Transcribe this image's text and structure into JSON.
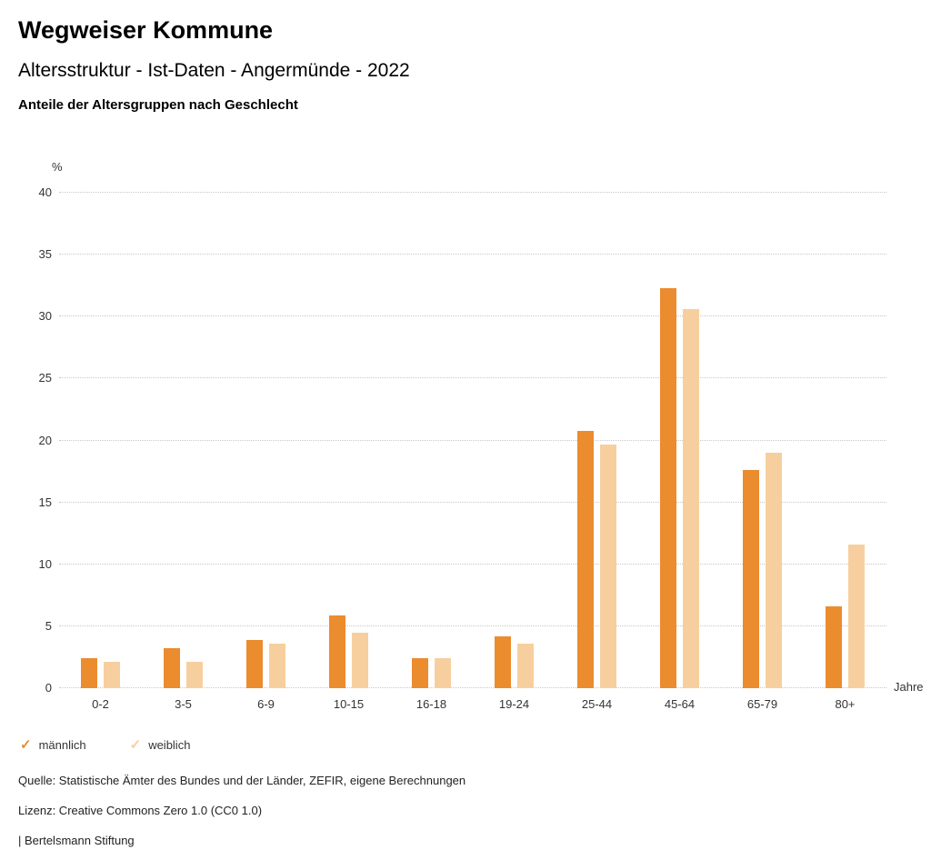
{
  "header": {
    "title": "Wegweiser Kommune",
    "subtitle": "Altersstruktur - Ist-Daten - Angermünde - 2022",
    "caption": "Anteile der Altersgruppen nach Geschlecht"
  },
  "chart_data": {
    "type": "bar",
    "title": "Anteile der Altersgruppen nach Geschlecht",
    "categories": [
      "0-2",
      "3-5",
      "6-9",
      "10-15",
      "16-18",
      "19-24",
      "25-44",
      "45-64",
      "65-79",
      "80+"
    ],
    "series": [
      {
        "name": "männlich",
        "color": "#EB8C2F",
        "values": [
          2.4,
          3.2,
          3.9,
          5.9,
          2.4,
          4.2,
          20.8,
          32.3,
          17.6,
          6.6
        ]
      },
      {
        "name": "weiblich",
        "color": "#F7CF9E",
        "values": [
          2.1,
          2.1,
          3.6,
          4.5,
          2.4,
          3.6,
          19.7,
          30.6,
          19.0,
          11.6
        ]
      }
    ],
    "ylabel": "%",
    "xlabel": "Jahre",
    "ylim": [
      0,
      40
    ],
    "yticks": [
      0,
      5,
      10,
      15,
      20,
      25,
      30,
      35,
      40
    ],
    "grid": true,
    "legend_position": "bottom-left"
  },
  "legend": {
    "items": [
      {
        "label": "männlich",
        "color": "#EB8C2F",
        "icon": "check-icon"
      },
      {
        "label": "weiblich",
        "color": "#F7CF9E",
        "icon": "check-icon"
      }
    ]
  },
  "footer": {
    "source": "Quelle: Statistische Ämter des Bundes und der Länder, ZEFIR, eigene Berechnungen",
    "license": "Lizenz: Creative Commons Zero 1.0 (CC0 1.0)",
    "attribution": "| Bertelsmann Stiftung"
  }
}
